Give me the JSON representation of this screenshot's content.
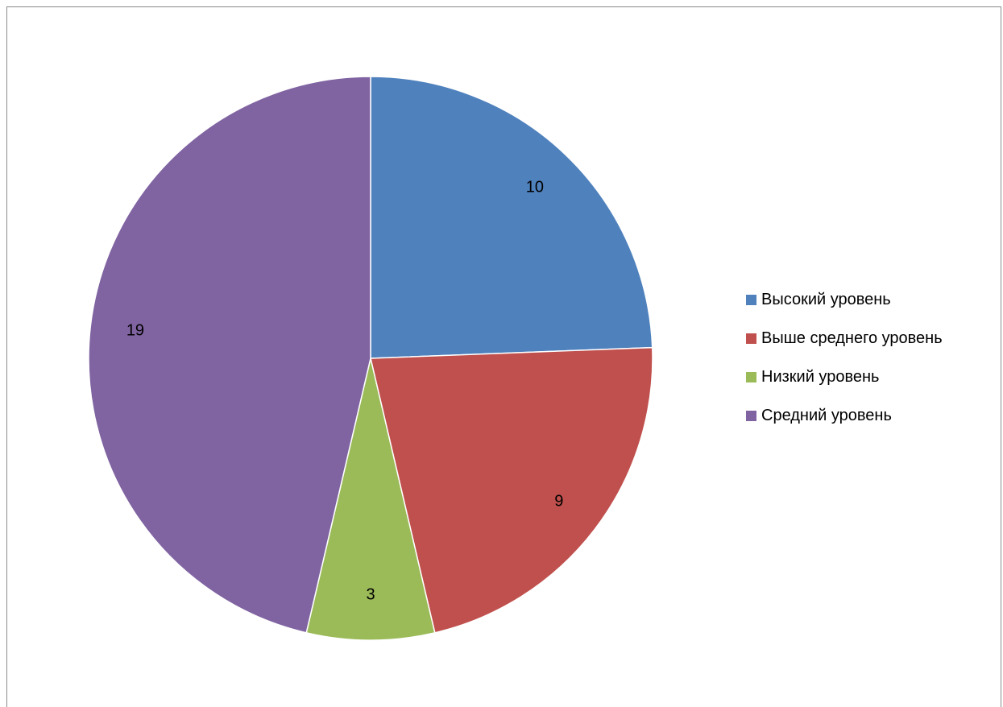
{
  "chart_data": {
    "type": "pie",
    "categories": [
      "Высокий уровень",
      "Выше среднего уровень",
      "Низкий уровень",
      "Средний уровень"
    ],
    "values": [
      10,
      9,
      3,
      19
    ],
    "colors": [
      "#4f81bd",
      "#c0504d",
      "#9bbb59",
      "#8064a2"
    ],
    "legend_position": "right"
  }
}
